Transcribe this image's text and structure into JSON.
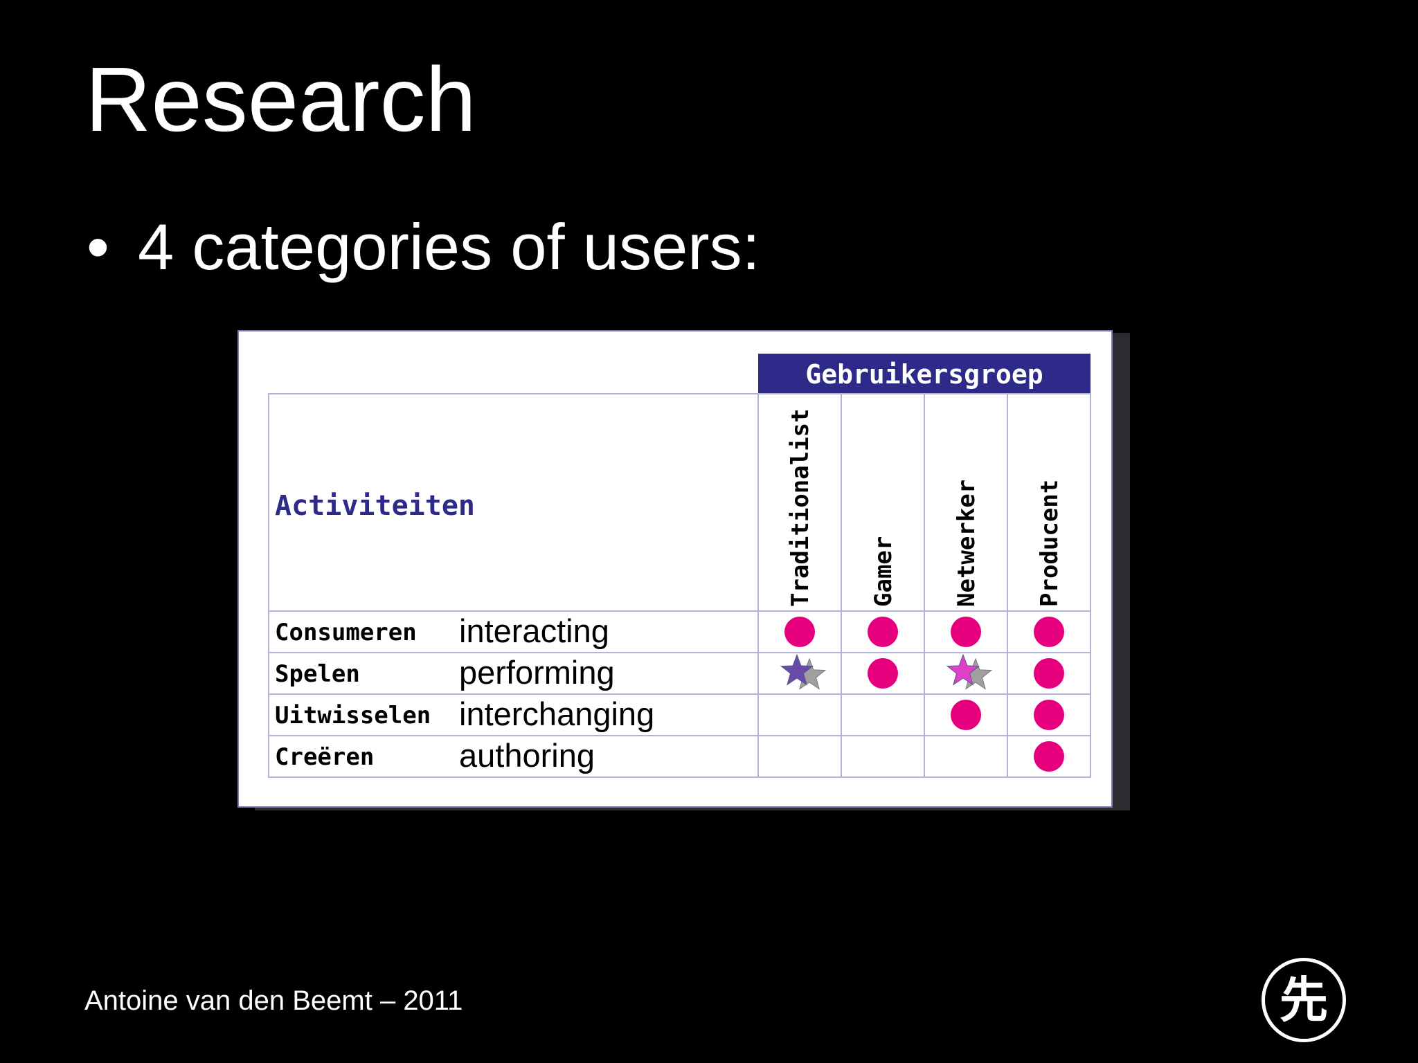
{
  "slide": {
    "title": "Research",
    "bullet_marker": "•",
    "bullet": "4 categories of users:",
    "footer": "Antoine van den Beemt  – 2011",
    "logo_glyph": "先"
  },
  "table": {
    "group_header": "Gebruikersgroep",
    "row_header": "Activiteiten",
    "columns": [
      "Traditionalist",
      "Gamer",
      "Netwerker",
      "Producent"
    ],
    "rows": [
      {
        "label": "Consumeren",
        "translation": "interacting",
        "marks": [
          "dot",
          "dot",
          "dot",
          "dot"
        ]
      },
      {
        "label": "Spelen",
        "translation": "performing",
        "marks": [
          "star",
          "dot",
          "star",
          "dot"
        ]
      },
      {
        "label": "Uitwisselen",
        "translation": "interchanging",
        "marks": [
          "",
          "",
          "dot",
          "dot"
        ]
      },
      {
        "label": "Creëren",
        "translation": "authoring",
        "marks": [
          "",
          "",
          "",
          "dot"
        ]
      }
    ],
    "colors": {
      "header_bg": "#2d2a8a",
      "grid": "#b3b3dc",
      "dot": "#e6007e",
      "star_purple": "#6a4aa8",
      "star_pink": "#e040c8",
      "star_gray": "#a0a0a0"
    }
  }
}
